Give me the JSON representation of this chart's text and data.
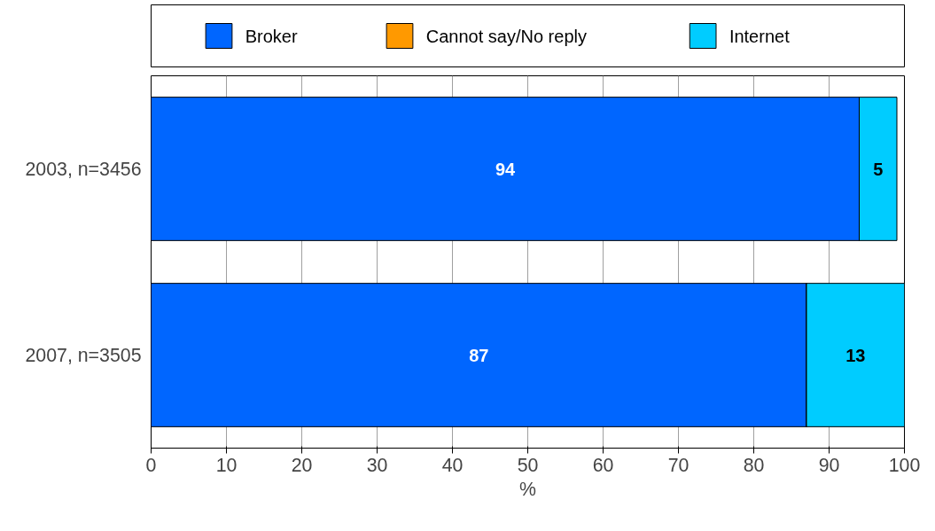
{
  "chart_data": {
    "type": "bar",
    "orientation": "horizontal",
    "stacked": true,
    "categories": [
      "2003, n=3456",
      "2007, n=3505"
    ],
    "series": [
      {
        "name": "Broker",
        "color": "#0066ff",
        "values": [
          94,
          87
        ],
        "value_labels": [
          "94",
          "87"
        ]
      },
      {
        "name": "Cannot say/No reply",
        "color": "#ff9900",
        "values": [
          0,
          0
        ],
        "value_labels": [
          null,
          null
        ]
      },
      {
        "name": "Internet",
        "color": "#00ccff",
        "values": [
          5,
          13
        ],
        "value_labels": [
          "5",
          "13"
        ]
      }
    ],
    "xlabel": "%",
    "xlim": [
      0,
      100
    ],
    "xticks": [
      0,
      10,
      20,
      30,
      40,
      50,
      60,
      70,
      80,
      90,
      100
    ],
    "grid": "x",
    "legend": "top"
  }
}
